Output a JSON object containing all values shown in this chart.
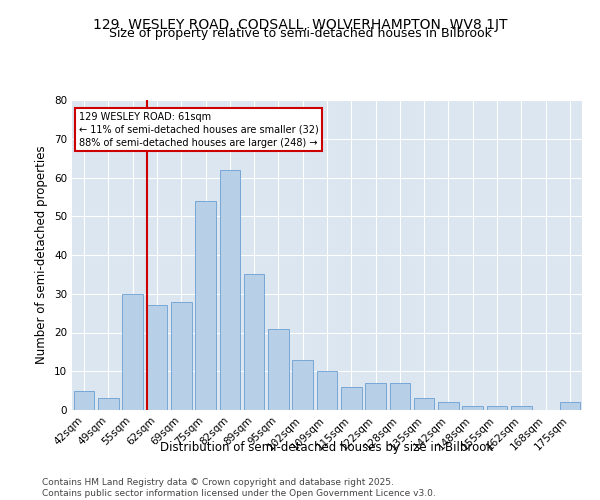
{
  "title": "129, WESLEY ROAD, CODSALL, WOLVERHAMPTON, WV8 1JT",
  "subtitle": "Size of property relative to semi-detached houses in Bilbrook",
  "xlabel": "Distribution of semi-detached houses by size in Bilbrook",
  "ylabel": "Number of semi-detached properties",
  "categories": [
    "42sqm",
    "49sqm",
    "55sqm",
    "62sqm",
    "69sqm",
    "75sqm",
    "82sqm",
    "89sqm",
    "95sqm",
    "102sqm",
    "109sqm",
    "115sqm",
    "122sqm",
    "128sqm",
    "135sqm",
    "142sqm",
    "148sqm",
    "155sqm",
    "162sqm",
    "168sqm",
    "175sqm"
  ],
  "values": [
    5,
    3,
    30,
    27,
    28,
    54,
    62,
    35,
    21,
    13,
    10,
    6,
    7,
    7,
    3,
    2,
    1,
    1,
    1,
    0,
    2
  ],
  "bar_color": "#b8cfe8",
  "bar_edge_color": "#6a9fd4",
  "subject_line_index": 3,
  "subject_label": "129 WESLEY ROAD: 61sqm",
  "annotation_line1": "← 11% of semi-detached houses are smaller (32)",
  "annotation_line2": "88% of semi-detached houses are larger (248) →",
  "red_line_color": "#cc0000",
  "annotation_box_edge": "#cc0000",
  "ylim": [
    0,
    80
  ],
  "yticks": [
    0,
    10,
    20,
    30,
    40,
    50,
    60,
    70,
    80
  ],
  "background_color": "#dce6f0",
  "footer": "Contains HM Land Registry data © Crown copyright and database right 2025.\nContains public sector information licensed under the Open Government Licence v3.0.",
  "title_fontsize": 10,
  "subtitle_fontsize": 9,
  "axis_label_fontsize": 8.5,
  "tick_fontsize": 7.5,
  "footer_fontsize": 6.5
}
